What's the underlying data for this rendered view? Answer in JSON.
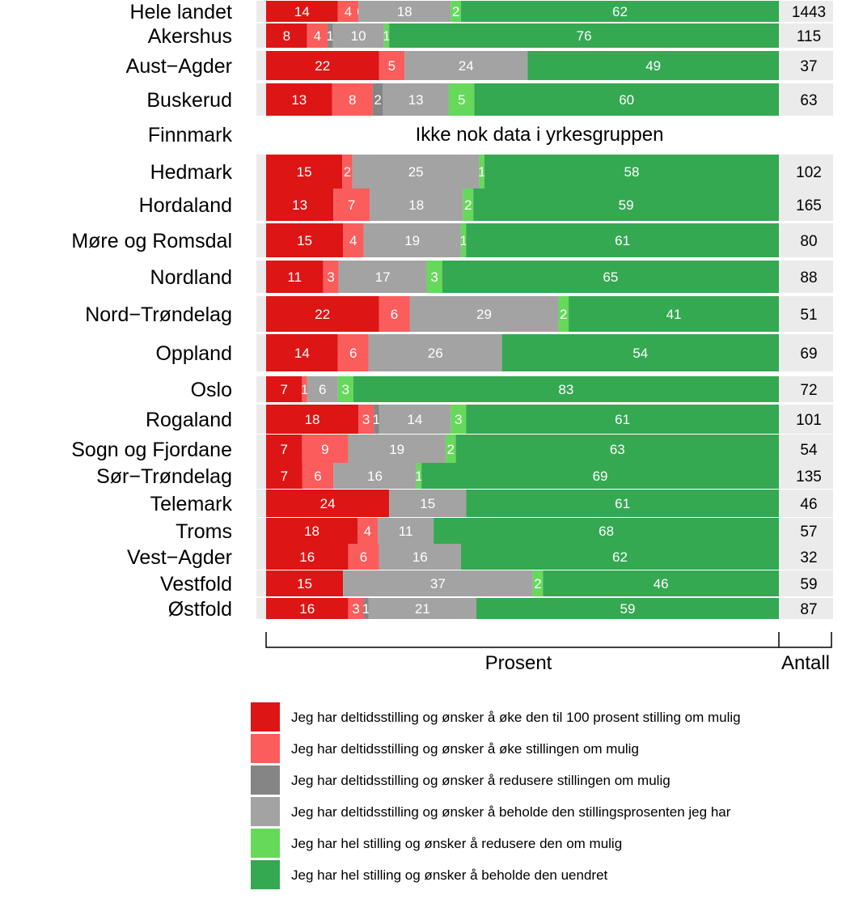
{
  "chart_data": {
    "type": "bar",
    "orientation": "horizontal",
    "stacked": true,
    "xlabel": "Prosent",
    "count_label": "Antall",
    "no_data_text": "Ikke nok data i yrkesgruppen",
    "series": [
      {
        "name": "Jeg har deltidsstilling og ønsker å øke den til 100 prosent stilling om mulig",
        "color": "#dd1515"
      },
      {
        "name": "Jeg har deltidsstilling og ønsker å øke stillingen om mulig",
        "color": "#fb5c5c"
      },
      {
        "name": "Jeg har deltidsstilling og ønsker å redusere stillingen om mulig",
        "color": "#858585"
      },
      {
        "name": "Jeg har deltidsstilling og ønsker å beholde den stillingsprosenten jeg har",
        "color": "#a3a3a3"
      },
      {
        "name": "Jeg har hel stilling og ønsker å redusere den om mulig",
        "color": "#66d95b"
      },
      {
        "name": "Jeg har hel stilling og ønsker å beholde den uendret",
        "color": "#35a852"
      }
    ],
    "categories": [
      "Hele landet",
      "Akershus",
      "Aust−Agder",
      "Buskerud",
      "Finnmark",
      "Hedmark",
      "Hordaland",
      "Møre og Romsdal",
      "Nordland",
      "Nord−Trøndelag",
      "Oppland",
      "Oslo",
      "Rogaland",
      "Sogn og Fjordane",
      "Sør−Trøndelag",
      "Telemark",
      "Troms",
      "Vest−Agder",
      "Vestfold",
      "Østfold"
    ],
    "rows": [
      {
        "values": [
          14,
          4,
          0,
          18,
          2,
          62
        ],
        "labels": [
          "14",
          "4",
          "0",
          "18",
          "2",
          "62"
        ],
        "count": "1443"
      },
      {
        "values": [
          8,
          4,
          1,
          10,
          1,
          76
        ],
        "labels": [
          "8",
          "4",
          "1",
          "10",
          "1",
          "76"
        ],
        "count": "115"
      },
      {
        "values": [
          22,
          5,
          0,
          24,
          0,
          49
        ],
        "labels": [
          "22",
          "5",
          "",
          "24",
          "",
          "49"
        ],
        "count": "37"
      },
      {
        "values": [
          13,
          8,
          2,
          13,
          5,
          60
        ],
        "labels": [
          "13",
          "8",
          "2",
          "13",
          "5",
          "60"
        ],
        "count": "63"
      },
      {
        "values": null,
        "labels": [],
        "count": ""
      },
      {
        "values": [
          15,
          2,
          0,
          25,
          1,
          58
        ],
        "labels": [
          "15",
          "2",
          "",
          "25",
          "1",
          "58"
        ],
        "count": "102"
      },
      {
        "values": [
          13,
          7,
          0,
          18,
          2,
          59
        ],
        "labels": [
          "13",
          "7",
          "",
          "18",
          "2",
          "59"
        ],
        "count": "165"
      },
      {
        "values": [
          15,
          4,
          0,
          19,
          1,
          61
        ],
        "labels": [
          "15",
          "4",
          "",
          "19",
          "1",
          "61"
        ],
        "count": "80"
      },
      {
        "values": [
          11,
          3,
          0,
          17,
          3,
          65
        ],
        "labels": [
          "11",
          "3",
          "",
          "17",
          "3",
          "65"
        ],
        "count": "88"
      },
      {
        "values": [
          22,
          6,
          0,
          29,
          2,
          41
        ],
        "labels": [
          "22",
          "6",
          "",
          "29",
          "2",
          "41"
        ],
        "count": "51"
      },
      {
        "values": [
          14,
          6,
          0,
          26,
          0,
          54
        ],
        "labels": [
          "14",
          "6",
          "",
          "26",
          "",
          "54"
        ],
        "count": "69"
      },
      {
        "values": [
          7,
          1,
          0,
          6,
          3,
          83
        ],
        "labels": [
          "7",
          "1",
          "",
          "6",
          "3",
          "83"
        ],
        "count": "72"
      },
      {
        "values": [
          18,
          3,
          1,
          14,
          3,
          61
        ],
        "labels": [
          "18",
          "3",
          "1",
          "14",
          "3",
          "61"
        ],
        "count": "101"
      },
      {
        "values": [
          7,
          9,
          0,
          19,
          2,
          63
        ],
        "labels": [
          "7",
          "9",
          "",
          "19",
          "2",
          "63"
        ],
        "count": "54"
      },
      {
        "values": [
          7,
          6,
          0,
          16,
          1,
          69
        ],
        "labels": [
          "7",
          "6",
          "",
          "16",
          "1",
          "69"
        ],
        "count": "135"
      },
      {
        "values": [
          24,
          0,
          0,
          15,
          0,
          61
        ],
        "labels": [
          "24",
          "",
          "",
          "15",
          "",
          "61"
        ],
        "count": "46"
      },
      {
        "values": [
          18,
          4,
          0,
          11,
          0,
          68
        ],
        "labels": [
          "18",
          "4",
          "",
          "11",
          "",
          "68"
        ],
        "count": "57"
      },
      {
        "values": [
          16,
          6,
          0,
          16,
          0,
          62
        ],
        "labels": [
          "16",
          "6",
          "",
          "16",
          "",
          "62"
        ],
        "count": "32"
      },
      {
        "values": [
          15,
          0,
          0,
          37,
          2,
          46
        ],
        "labels": [
          "15",
          "",
          "",
          "37",
          "2",
          "46"
        ],
        "count": "59"
      },
      {
        "values": [
          16,
          3,
          1,
          21,
          0,
          59
        ],
        "labels": [
          "16",
          "3",
          "1",
          "21",
          "",
          "59"
        ],
        "count": "87"
      }
    ]
  }
}
